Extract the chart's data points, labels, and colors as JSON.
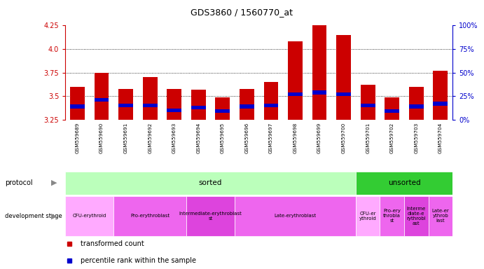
{
  "title": "GDS3860 / 1560770_at",
  "samples": [
    "GSM559689",
    "GSM559690",
    "GSM559691",
    "GSM559692",
    "GSM559693",
    "GSM559694",
    "GSM559695",
    "GSM559696",
    "GSM559697",
    "GSM559698",
    "GSM559699",
    "GSM559700",
    "GSM559701",
    "GSM559702",
    "GSM559703",
    "GSM559704"
  ],
  "bar_values": [
    3.6,
    3.75,
    3.58,
    3.7,
    3.58,
    3.57,
    3.49,
    3.58,
    3.65,
    4.08,
    4.25,
    4.15,
    3.62,
    3.49,
    3.6,
    3.77
  ],
  "blue_values": [
    3.37,
    3.44,
    3.38,
    3.38,
    3.33,
    3.36,
    3.32,
    3.37,
    3.38,
    3.5,
    3.52,
    3.5,
    3.38,
    3.32,
    3.37,
    3.4
  ],
  "blue_heights": [
    0.04,
    0.04,
    0.04,
    0.04,
    0.04,
    0.04,
    0.04,
    0.04,
    0.04,
    0.04,
    0.04,
    0.04,
    0.04,
    0.04,
    0.04,
    0.04
  ],
  "y_min": 3.25,
  "y_max": 4.25,
  "y_ticks_left": [
    3.25,
    3.5,
    3.75,
    4.0,
    4.25
  ],
  "y_ticks_right": [
    0,
    25,
    50,
    75,
    100
  ],
  "bar_color": "#cc0000",
  "blue_color": "#0000cc",
  "bg_color": "#ffffff",
  "axis_color_left": "#cc0000",
  "axis_color_right": "#0000cc",
  "xtick_bg": "#c8c8c8",
  "protocol_sorted_label": "sorted",
  "protocol_unsorted_label": "unsorted",
  "protocol_sorted_color": "#bbffbb",
  "protocol_unsorted_color": "#33cc33",
  "dev_sorted": [
    {
      "label": "CFU-erythroid",
      "start": 0,
      "end": 2,
      "color": "#ffaaff"
    },
    {
      "label": "Pro-erythroblast",
      "start": 2,
      "end": 5,
      "color": "#ee66ee"
    },
    {
      "label": "Intermediate-erythroblast\nst",
      "start": 5,
      "end": 7,
      "color": "#dd44dd"
    },
    {
      "label": "Late-erythroblast",
      "start": 7,
      "end": 12,
      "color": "#ee66ee"
    }
  ],
  "dev_unsorted": [
    {
      "label": "CFU-er\nythroid",
      "start": 12,
      "end": 13,
      "color": "#ffaaff"
    },
    {
      "label": "Pro-ery\nthrobla\nst",
      "start": 13,
      "end": 14,
      "color": "#ee66ee"
    },
    {
      "label": "Interme\ndiate-e\nrythrobl\nast",
      "start": 14,
      "end": 15,
      "color": "#dd44dd"
    },
    {
      "label": "Late-er\nythrob\nlast",
      "start": 15,
      "end": 16,
      "color": "#ee66ee"
    }
  ],
  "legend_red": "transformed count",
  "legend_blue": "percentile rank within the sample"
}
